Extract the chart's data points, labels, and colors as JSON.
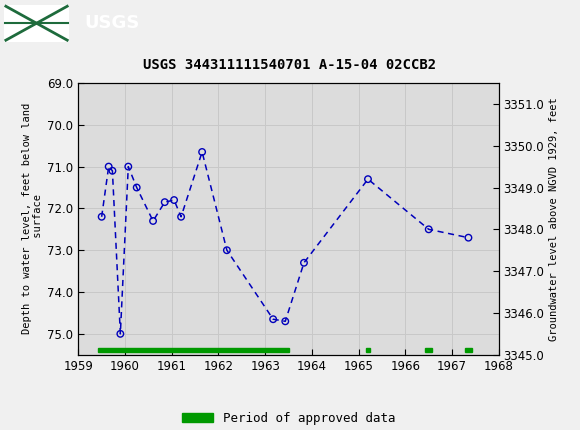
{
  "title": "USGS 344311111540701 A-15-04 02CCB2",
  "ylabel_left": "Depth to water level, feet below land\n surface",
  "ylabel_right": "Groundwater level above NGVD 1929, feet",
  "xlim": [
    1959,
    1968
  ],
  "ylim_left_top": 69.0,
  "ylim_left_bottom": 75.5,
  "ylim_right_top": 3351.5,
  "ylim_right_bottom": 3345.0,
  "yticks_left": [
    69.0,
    70.0,
    71.0,
    72.0,
    73.0,
    74.0,
    75.0
  ],
  "yticks_right": [
    3351.0,
    3350.0,
    3349.0,
    3348.0,
    3347.0,
    3346.0,
    3345.0
  ],
  "xticks": [
    1959,
    1960,
    1961,
    1962,
    1963,
    1964,
    1965,
    1966,
    1967,
    1968
  ],
  "data_x": [
    1959.5,
    1959.65,
    1959.73,
    1959.9,
    1960.07,
    1960.25,
    1960.6,
    1960.85,
    1961.05,
    1961.2,
    1961.65,
    1962.18,
    1963.17,
    1963.43,
    1963.83,
    1965.2,
    1966.5,
    1967.35
  ],
  "data_depth": [
    72.2,
    71.0,
    71.1,
    75.0,
    71.0,
    71.5,
    72.3,
    71.85,
    71.8,
    72.2,
    70.65,
    73.0,
    74.65,
    74.7,
    73.3,
    71.3,
    72.5,
    72.7
  ],
  "line_color": "#0000bb",
  "marker_edge_color": "#0000bb",
  "grid_color": "#c8c8c8",
  "plot_bg": "#dcdcdc",
  "fig_bg": "#f0f0f0",
  "header_bg": "#1e6b3c",
  "approved_color": "#009900",
  "legend_label": "Period of approved data",
  "approved_periods": [
    [
      1959.42,
      1963.5
    ],
    [
      1965.15,
      1965.25
    ],
    [
      1966.42,
      1966.58
    ],
    [
      1967.28,
      1967.42
    ]
  ],
  "approved_bar_depth": 75.38,
  "approved_bar_thickness": 0.1
}
